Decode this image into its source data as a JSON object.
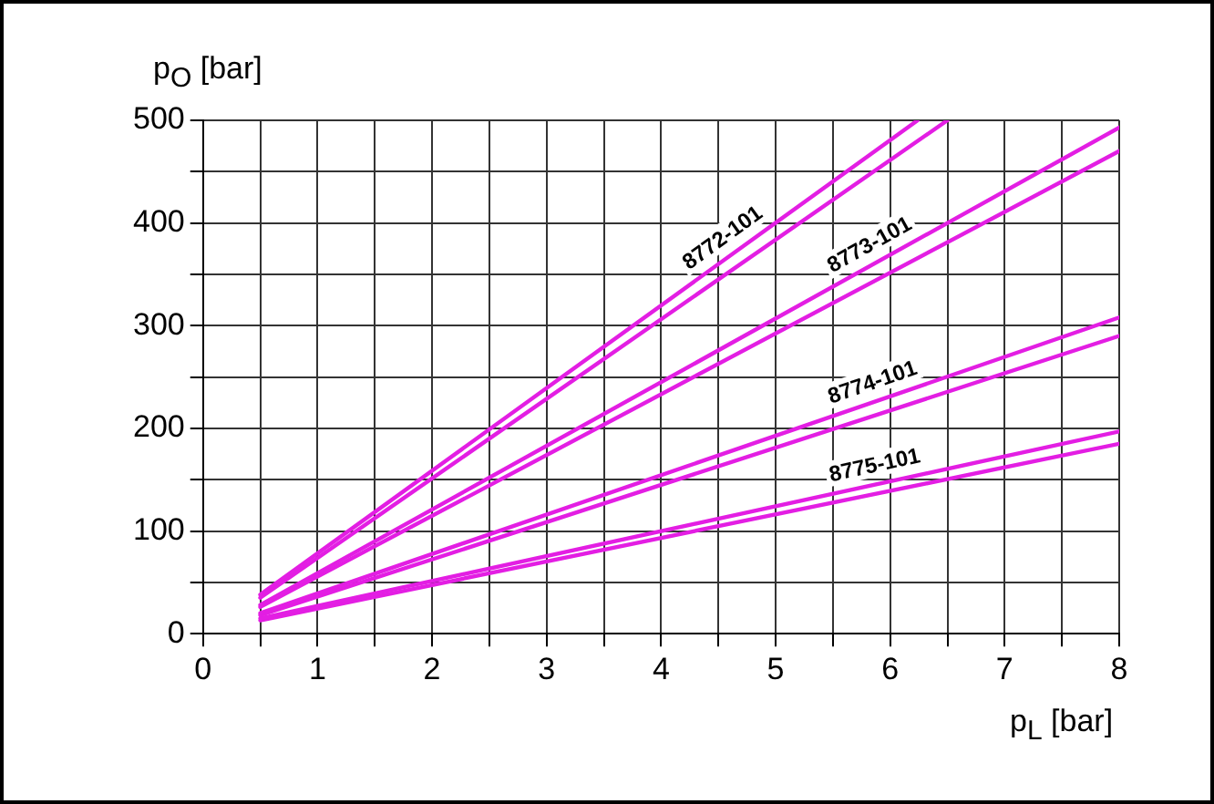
{
  "chart_data": {
    "type": "line",
    "xlabel": "p$_{L}$ [bar]",
    "ylabel": "p$_{O}$ [bar]",
    "xlim": [
      0,
      8
    ],
    "ylim": [
      0,
      500
    ],
    "xticks": [
      0,
      {
        "value": 0.5,
        "label": null
      },
      1,
      {
        "value": 1.5,
        "label": null
      },
      2,
      {
        "value": 2.5,
        "label": null
      },
      3,
      {
        "value": 3.5,
        "label": null
      },
      4,
      {
        "value": 4.5,
        "label": null
      },
      5,
      {
        "value": 5.5,
        "label": null
      },
      6,
      {
        "value": 6.5,
        "label": null
      },
      7,
      {
        "value": 7.5,
        "label": null
      },
      8
    ],
    "yticks": [
      0,
      {
        "value": 50,
        "label": null
      },
      100,
      {
        "value": 150,
        "label": null
      },
      200,
      {
        "value": 250,
        "label": null
      },
      300,
      {
        "value": 350,
        "label": null
      },
      400,
      {
        "value": 450,
        "label": null
      },
      500
    ],
    "grid": true,
    "legend": false,
    "marker": "none",
    "line_style": "solid",
    "series": [
      {
        "name": "8772-101",
        "color": "#e31ee3",
        "x": [
          0.5,
          6.24
        ],
        "values": [
          38,
          500
        ]
      },
      {
        "color": "#e31ee3",
        "x": [
          0.5,
          6.5
        ],
        "values": [
          35,
          500
        ]
      },
      {
        "name": "8773-101",
        "color": "#e31ee3",
        "x": [
          0.5,
          8
        ],
        "values": [
          28,
          493
        ]
      },
      {
        "color": "#e31ee3",
        "x": [
          0.5,
          8
        ],
        "values": [
          26,
          470
        ]
      },
      {
        "name": "8774-101",
        "color": "#e31ee3",
        "x": [
          0.5,
          8
        ],
        "values": [
          20,
          308
        ]
      },
      {
        "color": "#e31ee3",
        "x": [
          0.5,
          8
        ],
        "values": [
          18,
          290
        ]
      },
      {
        "name": "8775-101",
        "color": "#e31ee3",
        "x": [
          0.5,
          8
        ],
        "values": [
          15,
          197
        ]
      },
      {
        "color": "#e31ee3",
        "x": [
          0.5,
          8
        ],
        "values": [
          13,
          185
        ]
      }
    ]
  }
}
